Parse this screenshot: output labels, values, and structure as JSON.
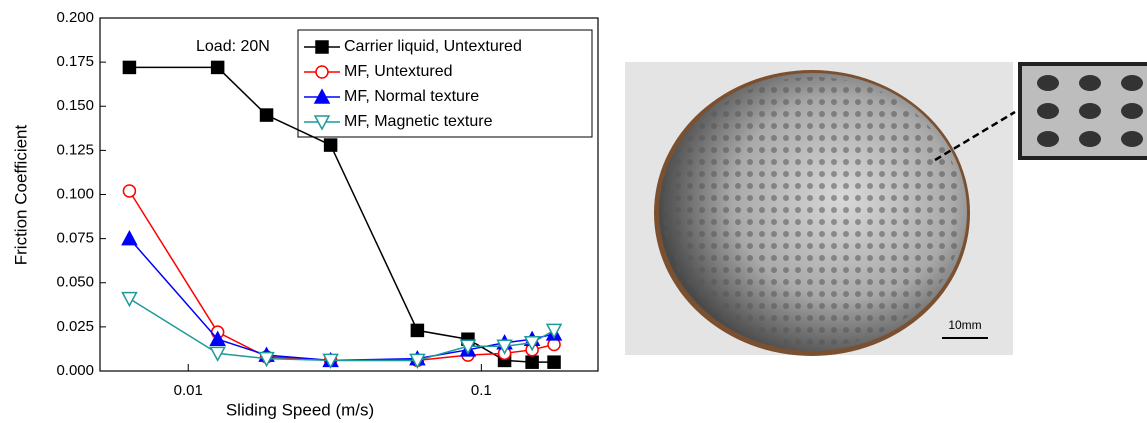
{
  "chart_data": {
    "type": "line",
    "xlabel": "Sliding Speed (m/s)",
    "ylabel": "Friction Coefficient",
    "annotation": "Load: 20N",
    "xscale": "log",
    "x": [
      0.0063,
      0.0126,
      0.0185,
      0.0306,
      0.0605,
      0.09,
      0.12,
      0.149,
      0.177
    ],
    "series": [
      {
        "name": "Carrier liquid, Untextured",
        "color": "#000000",
        "marker": "square",
        "filled": true,
        "values": [
          0.172,
          0.172,
          0.145,
          0.128,
          0.023,
          0.018,
          0.006,
          0.005,
          0.005
        ]
      },
      {
        "name": "MF, Untextured",
        "color": "#ff0000",
        "marker": "circle",
        "filled": false,
        "values": [
          0.102,
          0.022,
          0.008,
          0.006,
          0.006,
          0.009,
          0.01,
          0.012,
          0.015
        ]
      },
      {
        "name": "MF, Normal texture",
        "color": "#0000ff",
        "marker": "triangle",
        "filled": true,
        "values": [
          0.075,
          0.018,
          0.009,
          0.006,
          0.007,
          0.012,
          0.016,
          0.018,
          0.021
        ]
      },
      {
        "name": "MF, Magnetic texture",
        "color": "#1f9a9a",
        "marker": "triangle-down",
        "filled": false,
        "values": [
          0.041,
          0.01,
          0.007,
          0.006,
          0.006,
          0.014,
          0.014,
          0.016,
          0.023
        ]
      }
    ],
    "xlim": [
      0.005,
      0.25
    ],
    "xticks": [
      0.01,
      0.1
    ],
    "ylim": [
      0,
      0.2
    ],
    "yticks": [
      {
        "value": 0,
        "label": "0.000"
      },
      0.025,
      {
        "value": 0.05,
        "label": "0.050"
      },
      0.075,
      {
        "value": 0.1,
        "label": "0.100"
      },
      0.125,
      {
        "value": 0.15,
        "label": "0.150"
      },
      0.175,
      {
        "value": 0.2,
        "label": "0.200"
      }
    ],
    "legend": "top-right",
    "grid": false
  },
  "photo": {
    "scale_bar_label": "10mm"
  }
}
